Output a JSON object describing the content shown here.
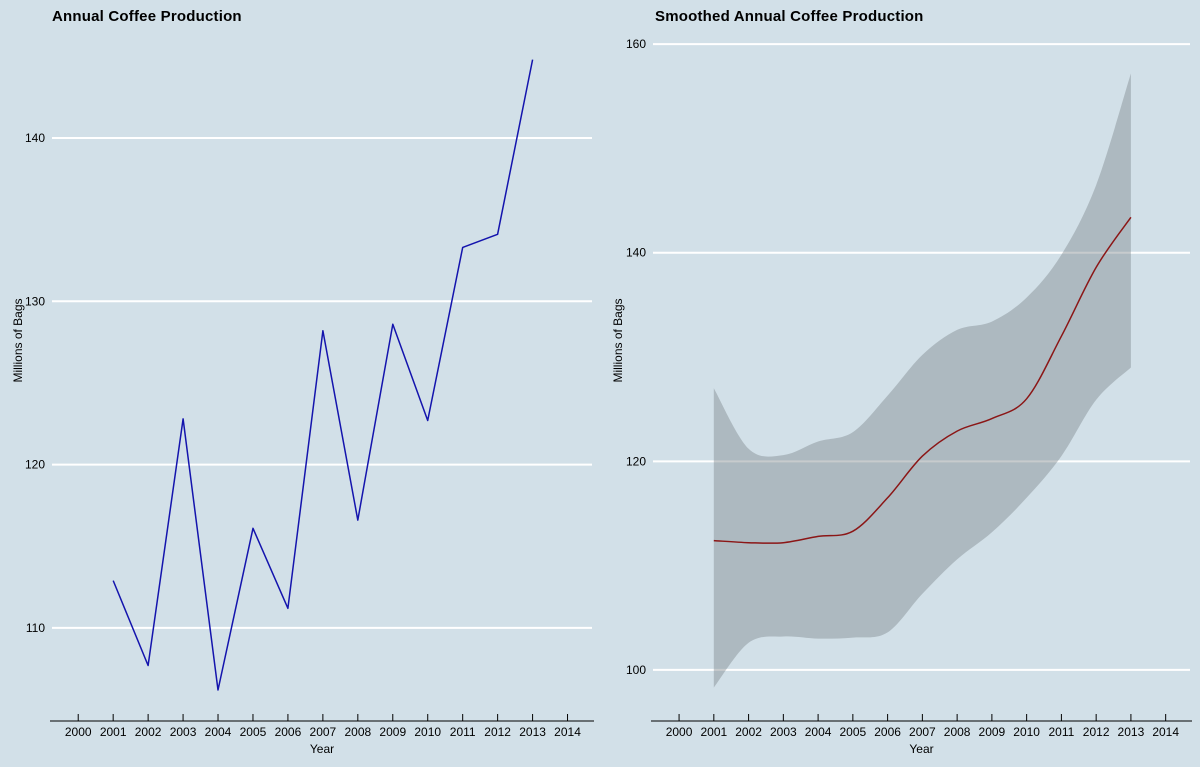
{
  "window": {
    "background_color": "#d2e0e8",
    "gridline_color": "#ffffff",
    "axis_color": "#000000"
  },
  "chart_data": [
    {
      "type": "line",
      "title": "Annual Coffee Production",
      "xlabel": "Year",
      "ylabel": "Millions of Bags",
      "x": [
        2001,
        2002,
        2003,
        2004,
        2005,
        2006,
        2007,
        2008,
        2009,
        2010,
        2011,
        2012,
        2013
      ],
      "series": [
        {
          "name": "annual-production",
          "color": "#1414ad",
          "smooth": false,
          "values": [
            112.9,
            107.7,
            122.8,
            106.2,
            116.1,
            111.2,
            128.2,
            116.6,
            128.6,
            122.7,
            133.3,
            134.1,
            144.8
          ]
        }
      ],
      "x_ticks": [
        2000,
        2001,
        2002,
        2003,
        2004,
        2005,
        2006,
        2007,
        2008,
        2009,
        2010,
        2011,
        2012,
        2013,
        2014
      ],
      "y_ticks": [
        110,
        120,
        130,
        140
      ],
      "xlim": [
        1999.25,
        2014.7
      ],
      "ylim": [
        104.3,
        146.0
      ],
      "grid": "horizontal-white",
      "legend": "none"
    },
    {
      "type": "line",
      "title": "Smoothed Annual Coffee Production",
      "xlabel": "Year",
      "ylabel": "Millions of Bags",
      "x": [
        2001,
        2002,
        2003,
        2004,
        2005,
        2006,
        2007,
        2008,
        2009,
        2010,
        2011,
        2012,
        2013
      ],
      "series": [
        {
          "name": "smoothed-fit",
          "color": "#8b1616",
          "smooth": true,
          "values": [
            112.4,
            112.2,
            112.2,
            112.8,
            113.3,
            116.5,
            120.5,
            122.9,
            124.1,
            126.0,
            132.0,
            138.6,
            143.4
          ]
        }
      ],
      "band": {
        "name": "confidence-band",
        "color": "rgba(122,130,135,0.42)",
        "upper": [
          127.0,
          121.2,
          120.6,
          121.9,
          122.8,
          126.3,
          130.2,
          132.6,
          133.4,
          135.7,
          139.8,
          146.5,
          157.2
        ],
        "lower": [
          98.3,
          102.6,
          103.2,
          103.0,
          103.1,
          103.6,
          107.3,
          110.6,
          113.2,
          116.5,
          120.5,
          125.9,
          129.0
        ]
      },
      "x_ticks": [
        2000,
        2001,
        2002,
        2003,
        2004,
        2005,
        2006,
        2007,
        2008,
        2009,
        2010,
        2011,
        2012,
        2013,
        2014
      ],
      "y_ticks": [
        100,
        120,
        140,
        160
      ],
      "xlim": [
        1999.25,
        2014.7
      ],
      "ylim": [
        95.1,
        160.4
      ],
      "grid": "horizontal-white",
      "legend": "none"
    }
  ]
}
